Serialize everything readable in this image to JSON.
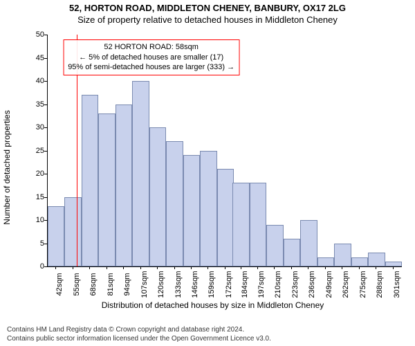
{
  "title": {
    "line1": "52, HORTON ROAD, MIDDLETON CHENEY, BANBURY, OX17 2LG",
    "line2": "Size of property relative to detached houses in Middleton Cheney"
  },
  "chart": {
    "type": "histogram",
    "x_min": 35.5,
    "x_max": 307.5,
    "bar_width_units": 13,
    "categories": [
      42,
      55,
      68,
      81,
      94,
      107,
      120,
      133,
      146,
      159,
      172,
      184,
      197,
      210,
      223,
      236,
      249,
      262,
      275,
      288,
      301
    ],
    "values": [
      13,
      15,
      37,
      33,
      35,
      40,
      30,
      27,
      24,
      25,
      21,
      18,
      18,
      9,
      6,
      10,
      2,
      5,
      2,
      3,
      1
    ],
    "bar_fill": "#c8d1ec",
    "bar_border": "#7a8ab0",
    "ylim": [
      0,
      50
    ],
    "ytick_step": 5,
    "ylabel": "Number of detached properties",
    "xlabel": "Distribution of detached houses by size in Middleton Cheney",
    "xtick_suffix": "sqm",
    "tick_fontsize": 11,
    "label_fontsize": 12,
    "background": "#ffffff",
    "marker": {
      "x": 58,
      "color": "#ff0000"
    },
    "annotation": {
      "line1": "52 HORTON ROAD: 58sqm",
      "line2": "← 5% of detached houses are smaller (17)",
      "line3": "95% of semi-detached houses are larger (333) →",
      "border_color": "#ff0000",
      "x_center_units": 115,
      "y_top_value": 49
    }
  },
  "footer": {
    "line1": "Contains HM Land Registry data © Crown copyright and database right 2024.",
    "line2": "Contains public sector information licensed under the Open Government Licence v3.0."
  }
}
